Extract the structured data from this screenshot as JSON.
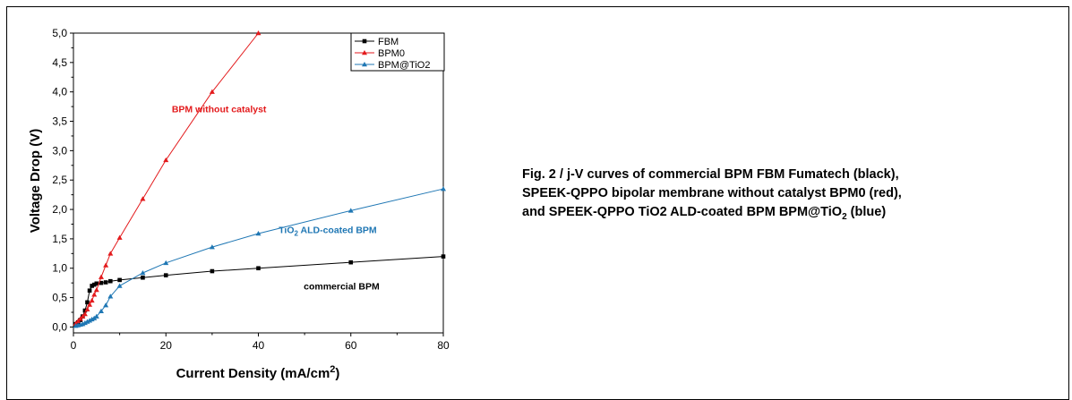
{
  "caption": {
    "line1": "Fig. 2 / j-V curves of commercial BPM FBM Fumatech (black),",
    "line2": "SPEEK-QPPO bipolar membrane without catalyst BPM0 (red),",
    "line3_main": "and SPEEK-QPPO TiO2 ALD-coated BPM BPM@TiO",
    "line3_sub": "2",
    "line3_end": " (blue)"
  },
  "chart_data": {
    "type": "line",
    "xlabel_main": "Current Density (mA/cm",
    "xlabel_sup": "2",
    "xlabel_end": ")",
    "ylabel": "Voltage Drop (V)",
    "xlim": [
      0,
      80
    ],
    "ylim": [
      -0.1,
      5.0
    ],
    "x_ticks": [
      "0",
      "20",
      "40",
      "60",
      "80"
    ],
    "y_ticks": [
      "0,0",
      "0,5",
      "1,0",
      "1,5",
      "2,0",
      "2,5",
      "3,0",
      "3,5",
      "4,0",
      "4,5",
      "5,0"
    ],
    "legend_position": "top-right",
    "grid": false,
    "series": [
      {
        "name": "FBM",
        "color": "#000000",
        "marker": "square",
        "x": [
          0.5,
          1,
          1.5,
          2,
          2.5,
          3,
          3.5,
          4,
          4.5,
          5,
          6,
          7,
          8,
          10,
          15,
          20,
          30,
          40,
          60,
          80
        ],
        "y": [
          0.05,
          0.08,
          0.12,
          0.18,
          0.28,
          0.42,
          0.62,
          0.7,
          0.72,
          0.74,
          0.75,
          0.76,
          0.78,
          0.8,
          0.84,
          0.88,
          0.95,
          1.0,
          1.1,
          1.2
        ]
      },
      {
        "name": "BPM0",
        "color": "#e31a1c",
        "marker": "triangle",
        "x": [
          0.5,
          1,
          1.5,
          2,
          2.5,
          3,
          3.5,
          4,
          4.5,
          5,
          6,
          7,
          8,
          10,
          15,
          20,
          30,
          40
        ],
        "y": [
          0.06,
          0.1,
          0.14,
          0.18,
          0.22,
          0.3,
          0.38,
          0.45,
          0.55,
          0.63,
          0.85,
          1.05,
          1.25,
          1.52,
          2.18,
          2.84,
          4.0,
          5.0
        ]
      },
      {
        "name": "BPM@TiO2",
        "color": "#1f77b4",
        "marker": "triangle",
        "x": [
          0.5,
          1,
          1.5,
          2,
          2.5,
          3,
          3.5,
          4,
          4.5,
          5,
          6,
          7,
          8,
          10,
          15,
          20,
          30,
          40,
          60,
          80
        ],
        "y": [
          0.02,
          0.03,
          0.04,
          0.05,
          0.07,
          0.09,
          0.11,
          0.13,
          0.15,
          0.18,
          0.27,
          0.37,
          0.52,
          0.7,
          0.92,
          1.09,
          1.36,
          1.59,
          1.98,
          2.35
        ]
      }
    ],
    "annotations": [
      {
        "text": "BPM without catalyst",
        "color": "#e31a1c",
        "x": 31.5,
        "y": 3.65
      },
      {
        "text": "TiO",
        "sub": "2",
        "tail": " ALD-coated BPM",
        "color": "#1f77b4",
        "x": 55,
        "y": 1.6
      },
      {
        "text": "commercial BPM",
        "color": "#000000",
        "x": 58,
        "y": 0.64
      }
    ]
  }
}
